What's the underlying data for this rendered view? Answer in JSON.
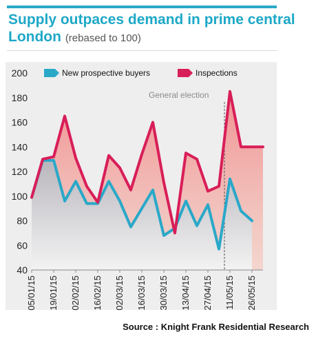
{
  "title": "Supply outpaces demand in prime central London",
  "subtitle": "(rebased to 100)",
  "source_label": "Source :",
  "source_text": "Knight Frank Residential Research",
  "colors": {
    "accent": "#1ea8c8",
    "buyers": "#2aa8c8",
    "inspections": "#d81e58"
  },
  "chart_data": {
    "type": "line",
    "title": "",
    "xlabel": "",
    "ylabel": "",
    "ylim": [
      40,
      200
    ],
    "yticks": [
      40,
      60,
      80,
      100,
      120,
      140,
      160,
      180,
      200
    ],
    "x_tick_labels": [
      "05/01/15",
      "19/01/15",
      "02/02/15",
      "16/02/15",
      "02/03/15",
      "16/03/15",
      "30/03/15",
      "13/04/15",
      "27/04/15",
      "11/05/15",
      "26/05/15"
    ],
    "x_count": 22,
    "legend_position": "top",
    "series": [
      {
        "name": "New prospective buyers",
        "values": [
          99,
          129,
          129,
          96,
          112,
          94,
          94,
          112,
          96,
          75,
          90,
          105,
          68,
          74,
          96,
          76,
          93,
          57,
          114,
          88,
          80
        ]
      },
      {
        "name": "Inspections",
        "values": [
          99,
          130,
          132,
          165,
          131,
          108,
          95,
          133,
          123,
          105,
          134,
          160,
          111,
          70,
          135,
          130,
          104,
          108,
          185,
          140,
          140,
          140
        ]
      }
    ],
    "annotation": {
      "text": "General election",
      "x_index": 17.5
    }
  }
}
